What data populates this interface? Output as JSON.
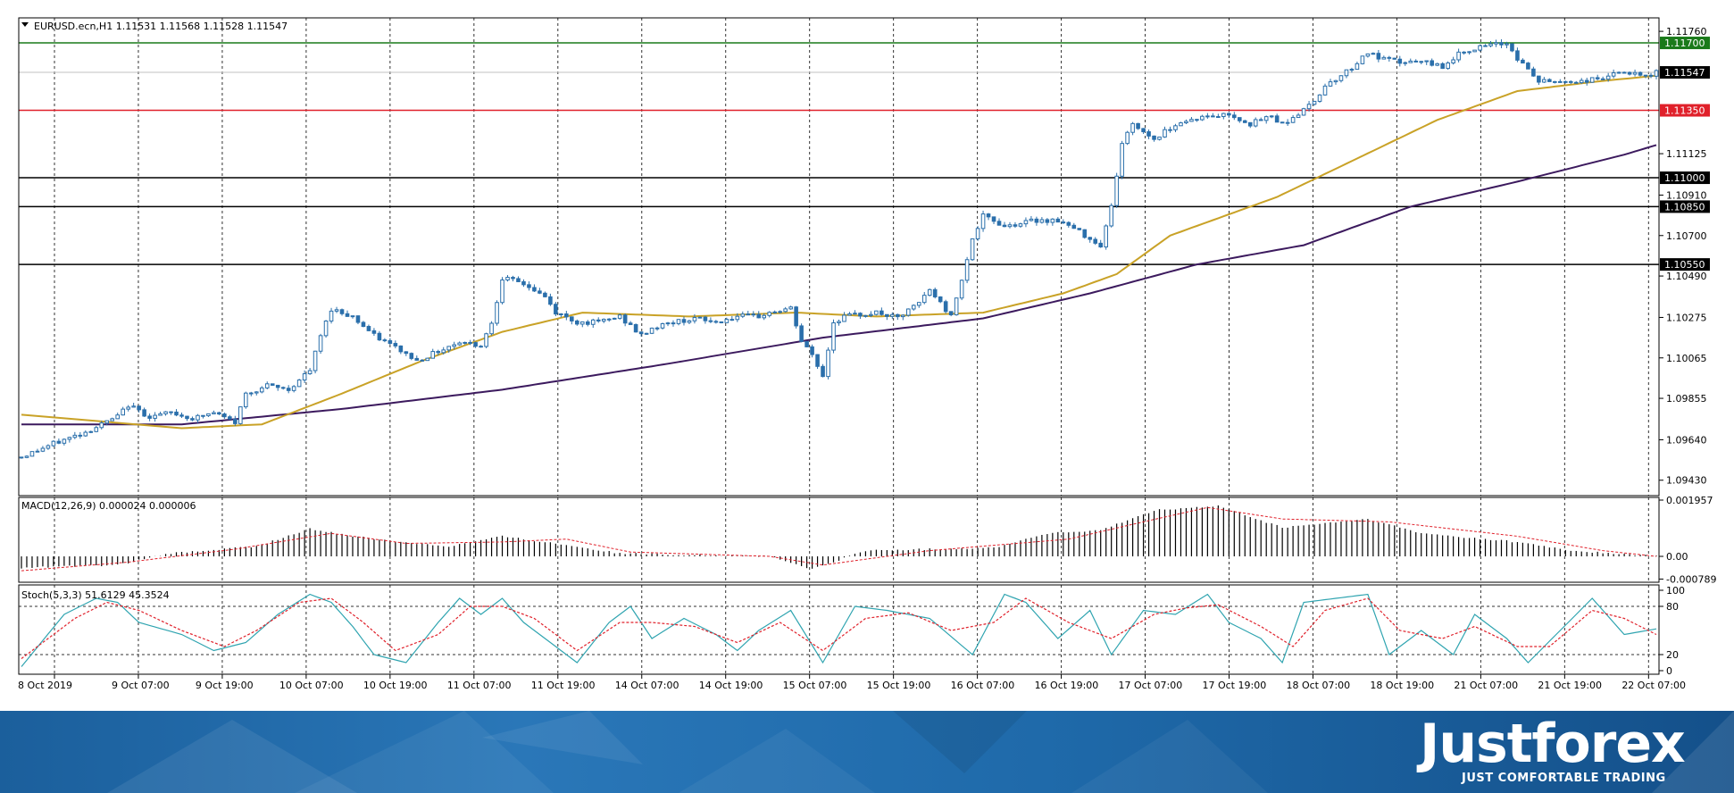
{
  "chart_data": [
    {
      "type": "candlestick",
      "title": "EURUSD.ecn,H1  1.11531 1.11568 1.11528 1.11547",
      "x_ticks": [
        "8 Oct 2019",
        "9 Oct 07:00",
        "9 Oct 19:00",
        "10 Oct 07:00",
        "10 Oct 19:00",
        "11 Oct 07:00",
        "11 Oct 19:00",
        "14 Oct 07:00",
        "14 Oct 19:00",
        "15 Oct 07:00",
        "15 Oct 19:00",
        "16 Oct 07:00",
        "16 Oct 19:00",
        "17 Oct 07:00",
        "17 Oct 19:00",
        "18 Oct 07:00",
        "18 Oct 19:00",
        "21 Oct 07:00",
        "21 Oct 19:00",
        "22 Oct 07:00"
      ],
      "y_ticks": [
        "1.11760",
        "1.11125",
        "1.10910",
        "1.10700",
        "1.10490",
        "1.10275",
        "1.10065",
        "1.09855",
        "1.09640",
        "1.09430"
      ],
      "y_range": [
        1.0935,
        1.1183
      ],
      "current_price": "1.11547",
      "levels": [
        {
          "label": "1.11700",
          "value": 1.117,
          "color": "#1a7a1a"
        },
        {
          "label": "1.11350",
          "value": 1.1135,
          "color": "#e0202a"
        },
        {
          "label": "1.11000",
          "value": 1.11,
          "color": "#000000"
        },
        {
          "label": "1.10850",
          "value": 1.1085,
          "color": "#000000"
        },
        {
          "label": "1.10550",
          "value": 1.1055,
          "color": "#000000"
        }
      ],
      "ohlc_key": [
        [
          0,
          1.0955
        ],
        [
          6,
          1.0962
        ],
        [
          12,
          1.0968
        ],
        [
          18,
          1.0976
        ],
        [
          20,
          1.0982
        ],
        [
          24,
          1.0976
        ],
        [
          28,
          1.0978
        ],
        [
          32,
          1.0975
        ],
        [
          36,
          1.0978
        ],
        [
          40,
          1.0973
        ],
        [
          42,
          1.0988
        ],
        [
          46,
          1.0992
        ],
        [
          50,
          1.099
        ],
        [
          54,
          1.1
        ],
        [
          56,
          1.1018
        ],
        [
          58,
          1.1032
        ],
        [
          62,
          1.1028
        ],
        [
          66,
          1.1018
        ],
        [
          70,
          1.1012
        ],
        [
          74,
          1.1005
        ],
        [
          78,
          1.101
        ],
        [
          82,
          1.1015
        ],
        [
          86,
          1.1013
        ],
        [
          88,
          1.1025
        ],
        [
          90,
          1.1048
        ],
        [
          94,
          1.1045
        ],
        [
          98,
          1.1038
        ],
        [
          100,
          1.103
        ],
        [
          104,
          1.1025
        ],
        [
          108,
          1.1025
        ],
        [
          112,
          1.1028
        ],
        [
          116,
          1.1018
        ],
        [
          118,
          1.1022
        ],
        [
          122,
          1.1025
        ],
        [
          126,
          1.1027
        ],
        [
          130,
          1.1025
        ],
        [
          134,
          1.1028
        ],
        [
          138,
          1.1028
        ],
        [
          140,
          1.103
        ],
        [
          144,
          1.1032
        ],
        [
          146,
          1.1015
        ],
        [
          148,
          1.1008
        ],
        [
          150,
          1.0997
        ],
        [
          152,
          1.1025
        ],
        [
          154,
          1.1028
        ],
        [
          160,
          1.103
        ],
        [
          164,
          1.1027
        ],
        [
          168,
          1.1035
        ],
        [
          170,
          1.1042
        ],
        [
          174,
          1.1028
        ],
        [
          176,
          1.1048
        ],
        [
          178,
          1.1068
        ],
        [
          180,
          1.108
        ],
        [
          184,
          1.1075
        ],
        [
          190,
          1.1078
        ],
        [
          194,
          1.1078
        ],
        [
          198,
          1.1072
        ],
        [
          202,
          1.1065
        ],
        [
          204,
          1.1085
        ],
        [
          206,
          1.1118
        ],
        [
          208,
          1.1128
        ],
        [
          212,
          1.112
        ],
        [
          216,
          1.1128
        ],
        [
          220,
          1.1131
        ],
        [
          226,
          1.1133
        ],
        [
          230,
          1.1128
        ],
        [
          234,
          1.1132
        ],
        [
          236,
          1.1128
        ],
        [
          240,
          1.1135
        ],
        [
          242,
          1.114
        ],
        [
          244,
          1.1148
        ],
        [
          248,
          1.1155
        ],
        [
          252,
          1.1165
        ],
        [
          254,
          1.1162
        ],
        [
          258,
          1.116
        ],
        [
          262,
          1.116
        ],
        [
          266,
          1.1158
        ],
        [
          270,
          1.1166
        ],
        [
          274,
          1.1168
        ],
        [
          278,
          1.117
        ],
        [
          280,
          1.1162
        ],
        [
          284,
          1.115
        ],
        [
          288,
          1.115
        ],
        [
          292,
          1.115
        ],
        [
          296,
          1.1152
        ],
        [
          300,
          1.1155
        ],
        [
          304,
          1.1152
        ],
        [
          306,
          1.1155
        ]
      ],
      "ma_fast": [
        [
          0,
          1.0977
        ],
        [
          30,
          1.097
        ],
        [
          45,
          1.0972
        ],
        [
          60,
          1.0988
        ],
        [
          75,
          1.1005
        ],
        [
          90,
          1.102
        ],
        [
          105,
          1.103
        ],
        [
          125,
          1.1028
        ],
        [
          145,
          1.103
        ],
        [
          160,
          1.1028
        ],
        [
          180,
          1.103
        ],
        [
          195,
          1.104
        ],
        [
          205,
          1.105
        ],
        [
          215,
          1.107
        ],
        [
          235,
          1.109
        ],
        [
          250,
          1.111
        ],
        [
          265,
          1.113
        ],
        [
          280,
          1.1145
        ],
        [
          295,
          1.115
        ],
        [
          306,
          1.1153
        ]
      ],
      "ma_slow": [
        [
          0,
          1.0972
        ],
        [
          30,
          1.0972
        ],
        [
          60,
          1.098
        ],
        [
          90,
          1.099
        ],
        [
          120,
          1.1003
        ],
        [
          150,
          1.1017
        ],
        [
          180,
          1.1027
        ],
        [
          200,
          1.104
        ],
        [
          220,
          1.1055
        ],
        [
          240,
          1.1065
        ],
        [
          260,
          1.1085
        ],
        [
          280,
          1.1098
        ],
        [
          300,
          1.1112
        ],
        [
          306,
          1.1117
        ]
      ],
      "colors": {
        "up": "#ffffff",
        "down": "#2a6fab",
        "wick": "#2a6fab",
        "ma_fast": "#c9a227",
        "ma_slow": "#3c1a5e",
        "grid": "#333333",
        "axis": "#000000"
      }
    },
    {
      "type": "bar",
      "title": "MACD(12,26,9) 0.000024 0.000006",
      "y_ticks": [
        "0.001957",
        "0.00",
        "-0.000789"
      ],
      "y_range": [
        -0.0009,
        0.00205
      ],
      "hist_key": [
        [
          0,
          -0.0004
        ],
        [
          18,
          -0.0003
        ],
        [
          28,
          0.0001
        ],
        [
          44,
          0.00035
        ],
        [
          54,
          0.00095
        ],
        [
          66,
          0.0006
        ],
        [
          80,
          0.00035
        ],
        [
          90,
          0.0007
        ],
        [
          102,
          0.0004
        ],
        [
          112,
          0.0001
        ],
        [
          140,
          0.0
        ],
        [
          148,
          -0.00045
        ],
        [
          158,
          0.0002
        ],
        [
          182,
          0.0003
        ],
        [
          192,
          0.0008
        ],
        [
          202,
          0.0009
        ],
        [
          212,
          0.0016
        ],
        [
          224,
          0.00175
        ],
        [
          236,
          0.001
        ],
        [
          252,
          0.0013
        ],
        [
          262,
          0.0008
        ],
        [
          280,
          0.0005
        ],
        [
          290,
          0.0002
        ],
        [
          306,
          0.0
        ]
      ],
      "signal_key": [
        [
          0,
          -0.0005
        ],
        [
          20,
          -0.0002
        ],
        [
          40,
          0.00025
        ],
        [
          58,
          0.0008
        ],
        [
          72,
          0.00045
        ],
        [
          90,
          0.0005
        ],
        [
          102,
          0.0006
        ],
        [
          114,
          0.00015
        ],
        [
          140,
          0.0
        ],
        [
          150,
          -0.0003
        ],
        [
          170,
          0.0002
        ],
        [
          196,
          0.0006
        ],
        [
          210,
          0.0012
        ],
        [
          222,
          0.0017
        ],
        [
          236,
          0.0013
        ],
        [
          256,
          0.0012
        ],
        [
          280,
          0.0007
        ],
        [
          296,
          0.0002
        ],
        [
          306,
          0.0
        ]
      ],
      "colors": {
        "hist": "#000000",
        "signal": "#e0202a"
      }
    },
    {
      "type": "line",
      "title": "Stoch(5,3,3) 51.6129 45.3524",
      "y_ticks": [
        "100",
        "80",
        "20",
        "0"
      ],
      "y_range": [
        0,
        100
      ],
      "k_key": [
        [
          0,
          5
        ],
        [
          8,
          70
        ],
        [
          14,
          90
        ],
        [
          18,
          85
        ],
        [
          22,
          60
        ],
        [
          30,
          45
        ],
        [
          36,
          25
        ],
        [
          42,
          35
        ],
        [
          48,
          70
        ],
        [
          54,
          95
        ],
        [
          58,
          85
        ],
        [
          62,
          55
        ],
        [
          66,
          20
        ],
        [
          72,
          10
        ],
        [
          78,
          60
        ],
        [
          82,
          90
        ],
        [
          86,
          70
        ],
        [
          90,
          90
        ],
        [
          94,
          60
        ],
        [
          100,
          30
        ],
        [
          104,
          10
        ],
        [
          110,
          60
        ],
        [
          114,
          80
        ],
        [
          118,
          40
        ],
        [
          124,
          65
        ],
        [
          130,
          45
        ],
        [
          134,
          25
        ],
        [
          138,
          50
        ],
        [
          144,
          75
        ],
        [
          150,
          10
        ],
        [
          156,
          80
        ],
        [
          162,
          75
        ],
        [
          170,
          65
        ],
        [
          178,
          20
        ],
        [
          184,
          95
        ],
        [
          188,
          85
        ],
        [
          194,
          40
        ],
        [
          200,
          75
        ],
        [
          204,
          20
        ],
        [
          210,
          75
        ],
        [
          216,
          70
        ],
        [
          222,
          95
        ],
        [
          226,
          60
        ],
        [
          232,
          40
        ],
        [
          236,
          10
        ],
        [
          240,
          85
        ],
        [
          246,
          90
        ],
        [
          252,
          95
        ],
        [
          256,
          20
        ],
        [
          262,
          50
        ],
        [
          268,
          20
        ],
        [
          272,
          70
        ],
        [
          278,
          40
        ],
        [
          282,
          10
        ],
        [
          288,
          50
        ],
        [
          294,
          90
        ],
        [
          300,
          45
        ],
        [
          306,
          52
        ]
      ],
      "d_key": [
        [
          0,
          15
        ],
        [
          10,
          65
        ],
        [
          16,
          85
        ],
        [
          22,
          75
        ],
        [
          30,
          50
        ],
        [
          38,
          30
        ],
        [
          44,
          50
        ],
        [
          52,
          85
        ],
        [
          58,
          90
        ],
        [
          64,
          60
        ],
        [
          70,
          25
        ],
        [
          78,
          45
        ],
        [
          84,
          80
        ],
        [
          90,
          80
        ],
        [
          96,
          65
        ],
        [
          104,
          25
        ],
        [
          112,
          60
        ],
        [
          118,
          60
        ],
        [
          126,
          55
        ],
        [
          134,
          35
        ],
        [
          142,
          60
        ],
        [
          150,
          25
        ],
        [
          158,
          65
        ],
        [
          166,
          72
        ],
        [
          174,
          50
        ],
        [
          182,
          60
        ],
        [
          188,
          90
        ],
        [
          196,
          60
        ],
        [
          204,
          40
        ],
        [
          212,
          70
        ],
        [
          218,
          78
        ],
        [
          224,
          82
        ],
        [
          232,
          55
        ],
        [
          238,
          30
        ],
        [
          244,
          75
        ],
        [
          252,
          90
        ],
        [
          258,
          50
        ],
        [
          266,
          40
        ],
        [
          272,
          55
        ],
        [
          280,
          30
        ],
        [
          286,
          30
        ],
        [
          294,
          75
        ],
        [
          300,
          65
        ],
        [
          306,
          45
        ]
      ],
      "colors": {
        "k": "#2fa4b0",
        "d": "#e0202a"
      }
    }
  ],
  "brand": {
    "logo_text": "Justforex",
    "tagline": "JUST COMFORTABLE TRADING"
  }
}
